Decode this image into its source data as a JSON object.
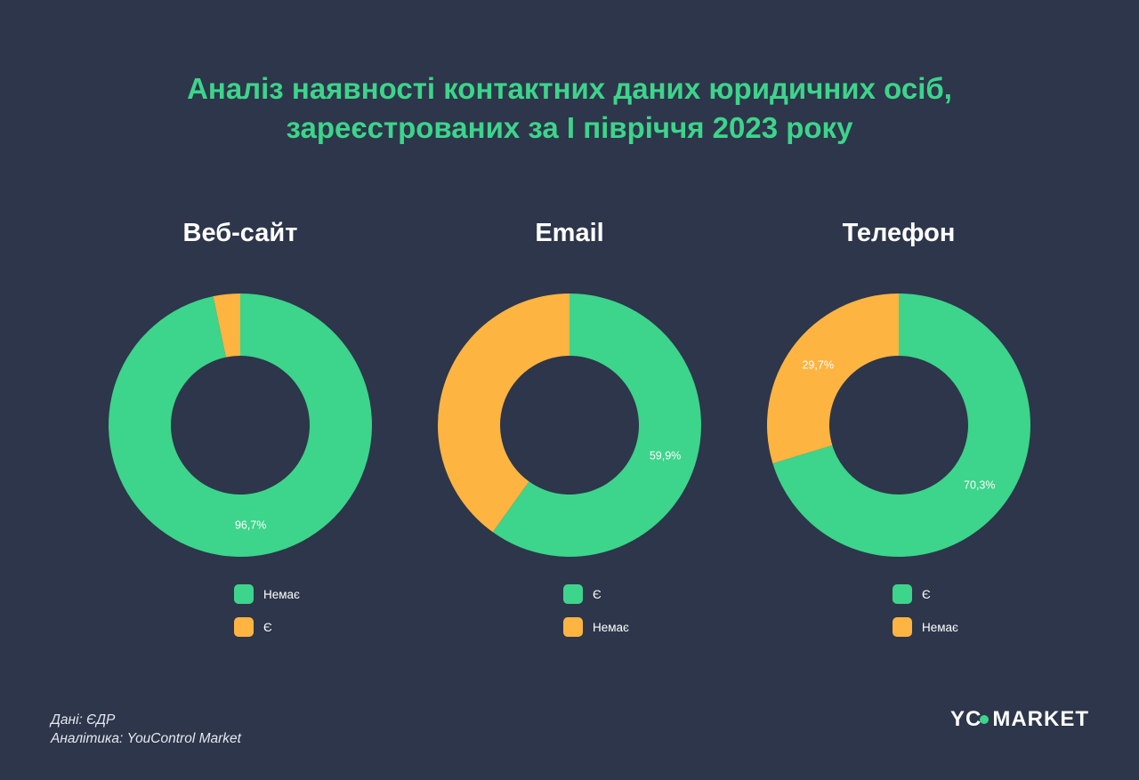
{
  "title": {
    "line1": "Аналіз наявності контактних даних юридичних осіб,",
    "line2": "зареєстрованих за І півріччя 2023 року"
  },
  "colors": {
    "green": "#3dd48b",
    "orange": "#fdb441",
    "background": "#2d364a",
    "title": "#3dd48b"
  },
  "chart_data": [
    {
      "type": "pie",
      "title": "Веб-сайт",
      "slices": [
        {
          "label": "Немає",
          "value": 96.7,
          "value_label": "96,7%",
          "color": "#3dd48b"
        },
        {
          "label": "Є",
          "value": 3.3,
          "value_label": "",
          "color": "#fdb441"
        }
      ],
      "legend": "bottom"
    },
    {
      "type": "pie",
      "title": "Email",
      "slices": [
        {
          "label": "Є",
          "value": 59.9,
          "value_label": "59,9%",
          "color": "#3dd48b"
        },
        {
          "label": "Немає",
          "value": 40.1,
          "value_label": "",
          "color": "#fdb441"
        }
      ],
      "legend": "bottom"
    },
    {
      "type": "pie",
      "title": "Телефон",
      "slices": [
        {
          "label": "Є",
          "value": 70.3,
          "value_label": "70,3%",
          "color": "#3dd48b"
        },
        {
          "label": "Немає",
          "value": 29.7,
          "value_label": "29,7%",
          "color": "#fdb441"
        }
      ],
      "legend": "bottom"
    }
  ],
  "footer": {
    "source": "Дані: ЄДР",
    "analytics": "Аналітика: YouControl Market"
  },
  "logo": {
    "left": "YC",
    "right": "MARKET"
  }
}
